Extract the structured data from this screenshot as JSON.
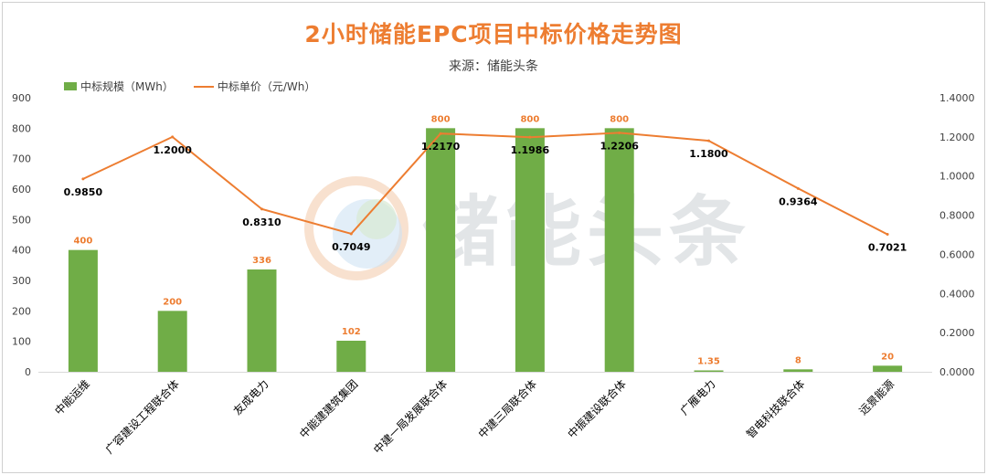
{
  "chart_data": {
    "type": "bar",
    "title": "2小时储能EPC项目中标价格走势图",
    "subtitle": "来源：储能头条",
    "watermark": "储能头条",
    "categories": [
      "中能运维",
      "广容建设工程联合体",
      "友成电力",
      "中能建建筑集团",
      "中建一局发展联合体",
      "中建三局联合体",
      "中振建设联合体",
      "广雁电力",
      "智电科技联合体",
      "远景能源"
    ],
    "series": [
      {
        "name": "中标规模（MWh）",
        "type": "bar",
        "axis": "left",
        "values": [
          400,
          200,
          336,
          102,
          800,
          800,
          800,
          1.35,
          8,
          20
        ],
        "labels": [
          "400",
          "200",
          "336",
          "102",
          "800",
          "800",
          "800",
          "1.35",
          "8",
          "20"
        ]
      },
      {
        "name": "中标单价（元/Wh）",
        "type": "line",
        "axis": "right",
        "values": [
          0.985,
          1.2,
          0.831,
          0.7049,
          1.217,
          1.1986,
          1.2206,
          1.18,
          0.9364,
          0.7021
        ],
        "labels": [
          "0.9850",
          "1.2000",
          "0.8310",
          "0.7049",
          "1.2170",
          "1.1986",
          "1.2206",
          "1.1800",
          "0.9364",
          "0.7021"
        ]
      }
    ],
    "ylim": [
      0,
      900
    ],
    "y_ticks": [
      "0",
      "100",
      "200",
      "300",
      "400",
      "500",
      "600",
      "700",
      "800",
      "900"
    ],
    "y2lim": [
      0,
      1.4
    ],
    "y2_ticks": [
      "0.0000",
      "0.2000",
      "0.4000",
      "0.6000",
      "0.8000",
      "1.0000",
      "1.2000",
      "1.4000"
    ],
    "grid": false,
    "legend_position": "top-left",
    "colors": {
      "bar": "#70ad47",
      "line": "#ed7d31",
      "bar_label": "#ed7d31",
      "line_label": "#000000",
      "title": "#ed7d31"
    }
  }
}
